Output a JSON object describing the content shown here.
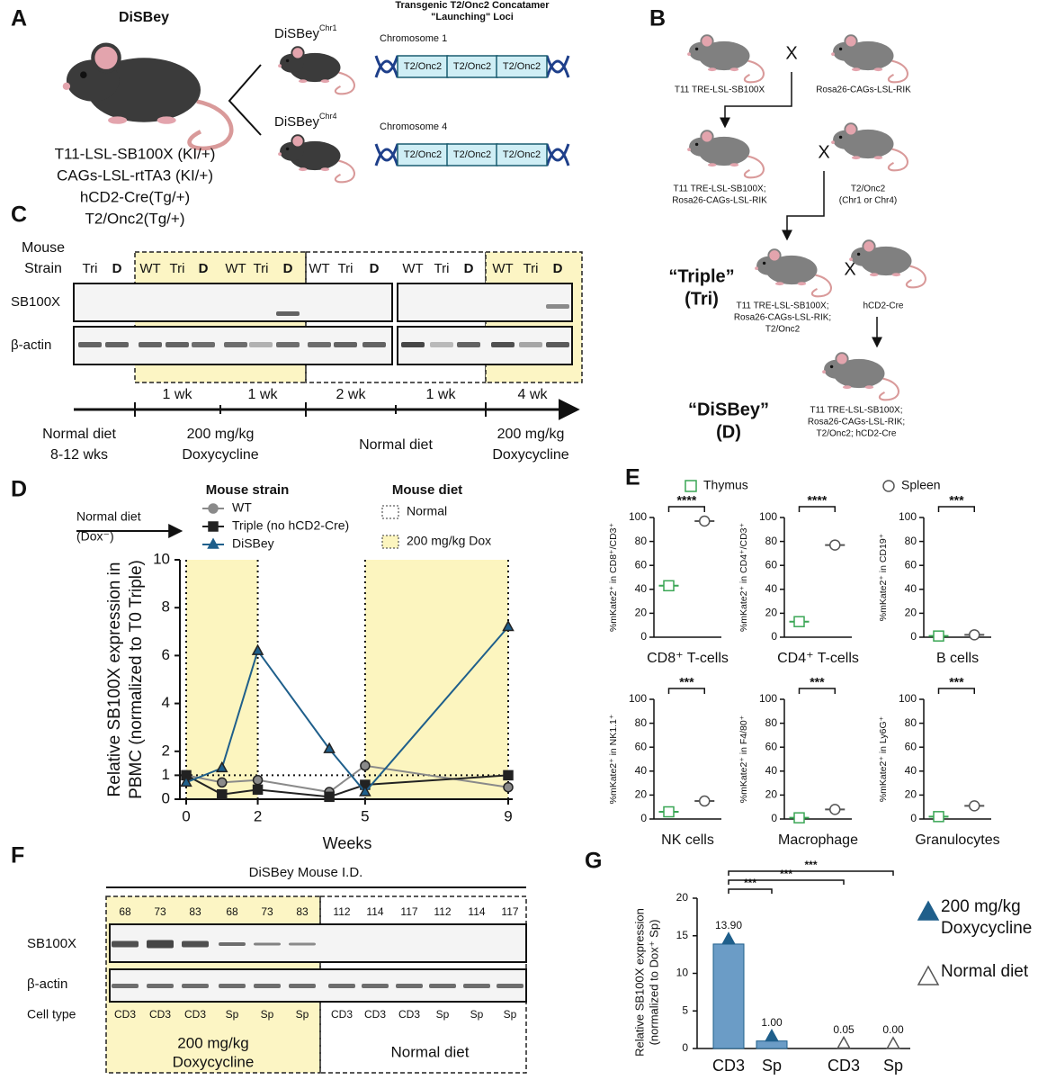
{
  "panel_labels": [
    "A",
    "B",
    "C",
    "D",
    "E",
    "F",
    "G"
  ],
  "panel_a": {
    "title": "DiSBey",
    "genotype": [
      "T11-LSL-SB100X (KI/+)",
      "CAGs-LSL-rtTA3 (KI/+)",
      "hCD2-Cre(Tg/+)",
      "T2/Onc2(Tg/+)"
    ],
    "loci_title": [
      "Transgenic T2/Onc2 Concatamer",
      "\"Launching\" Loci"
    ],
    "strains": [
      {
        "name": "DiSBey",
        "superscript": "Chr1",
        "chromosome": "Chromosome 1"
      },
      {
        "name": "DiSBey",
        "superscript": "Chr4",
        "chromosome": "Chromosome 4"
      }
    ],
    "element": "T2/Onc2"
  },
  "panel_b": {
    "cross": "X",
    "parent_1": [
      "T11 TRE-LSL-SB100X"
    ],
    "parent_2": [
      "Rosa26-CAGs-LSL-RIK"
    ],
    "f1": [
      "T11  TRE-LSL-SB100X;",
      "Rosa26-CAGs-LSL-RIK"
    ],
    "parent_3": [
      "T2/Onc2",
      "(Chr1 or Chr4)"
    ],
    "triple": {
      "name": "“Triple”",
      "abbr": "(Tri)",
      "genotype": [
        "T11 TRE-LSL-SB100X;",
        "Rosa26-CAGs-LSL-RIK;",
        "T2/Onc2"
      ]
    },
    "parent_4": [
      "hCD2-Cre"
    ],
    "disbey": {
      "name": "“DiSBey”",
      "abbr": "(D)",
      "genotype": [
        "T11 TRE-LSL-SB100X;",
        "Rosa26-CAGs-LSL-RIK;",
        "T2/Onc2; hCD2-Cre"
      ]
    }
  },
  "panel_c": {
    "header": [
      "Mouse",
      "Strain"
    ],
    "lanes": [
      "Tri",
      "D",
      "WT",
      "Tri",
      "D",
      "WT",
      "Tri",
      "D",
      "WT",
      "Tri",
      "D",
      "WT",
      "Tri",
      "D",
      "WT",
      "Tri",
      "D"
    ],
    "rows": [
      "SB100X",
      "β-actin"
    ],
    "durations": [
      "1 wk",
      "1 wk",
      "2 wk",
      "1 wk",
      "4 wk"
    ],
    "phases": [
      [
        "Normal diet",
        "8-12 wks"
      ],
      [
        "200 mg/kg",
        "Doxycycline"
      ],
      [
        "Normal diet"
      ],
      [
        "200 mg/kg",
        "Doxycycline"
      ]
    ]
  },
  "panel_e_legend": [
    {
      "name": "Thymus",
      "color": "#3aa655",
      "marker": "square"
    },
    {
      "name": "Spleen",
      "color": "#555555",
      "marker": "circle"
    }
  ],
  "panel_f": {
    "title": "DiSBey Mouse I.D.",
    "ids": [
      "68",
      "73",
      "83",
      "68",
      "73",
      "83",
      "112",
      "114",
      "117",
      "112",
      "114",
      "117"
    ],
    "rows": [
      "SB100X",
      "β-actin"
    ],
    "cell_type_label": "Cell type",
    "cell_types": [
      "CD3",
      "CD3",
      "CD3",
      "Sp",
      "Sp",
      "Sp",
      "CD3",
      "CD3",
      "CD3",
      "Sp",
      "Sp",
      "Sp"
    ],
    "groups": [
      [
        "200 mg/kg",
        "Doxycycline"
      ],
      [
        "Normal diet"
      ]
    ]
  },
  "chart_data": [
    {
      "type": "line",
      "xlabel": "Weeks",
      "ylabel": [
        "Relative SB100X expression in",
        "PBMC (normalized to T0 Triple)"
      ],
      "x": [
        0,
        1,
        2,
        4,
        5,
        9
      ],
      "series": [
        {
          "name": "WT",
          "color": "#8a8a8a",
          "marker": "circle",
          "values": [
            1.0,
            0.7,
            0.8,
            0.3,
            1.4,
            0.5
          ]
        },
        {
          "name": "Triple (no hCD2-Cre)",
          "color": "#222222",
          "marker": "square",
          "values": [
            1.0,
            0.2,
            0.4,
            0.1,
            0.6,
            1.0
          ]
        },
        {
          "name": "DiSBey",
          "color": "#1f5f8b",
          "marker": "triangle",
          "values": [
            0.7,
            1.3,
            6.2,
            2.1,
            0.3,
            7.2
          ]
        }
      ],
      "xlim": [
        0,
        9
      ],
      "xticks": [
        0,
        2,
        5,
        9
      ],
      "ylim": [
        0,
        10
      ],
      "yticks": [
        0,
        1,
        2,
        4,
        6,
        8,
        10
      ],
      "reference_line": 1,
      "shaded_x": [
        [
          0,
          2
        ],
        [
          5,
          9
        ]
      ],
      "shade_color": "#fcf5bf",
      "legend_title": "Mouse strain",
      "diet_legend": {
        "title": "Mouse diet",
        "entries": [
          "Normal",
          "200 mg/kg Dox"
        ]
      },
      "annotation": [
        "Normal diet",
        "(Dox⁻)"
      ]
    },
    {
      "type": "dot",
      "ylabel": "%mKate2⁺ in CD8⁺/CD3⁺",
      "xlabel": "CD8⁺ T-cells",
      "values": [
        43,
        97
      ],
      "significance": "****",
      "ylim": [
        0,
        100
      ],
      "yticks": [
        0,
        20,
        40,
        60,
        80,
        100
      ]
    },
    {
      "type": "dot",
      "ylabel": "%mKate2⁺ in CD4⁺/CD3⁺",
      "xlabel": "CD4⁺ T-cells",
      "values": [
        13,
        77
      ],
      "significance": "****",
      "ylim": [
        0,
        100
      ],
      "yticks": [
        0,
        20,
        40,
        60,
        80,
        100
      ]
    },
    {
      "type": "dot",
      "ylabel": "%mKate2⁺ in CD19⁺",
      "xlabel": "B cells",
      "values": [
        1,
        2
      ],
      "significance": "***",
      "ylim": [
        0,
        100
      ],
      "yticks": [
        0,
        20,
        40,
        60,
        80,
        100
      ]
    },
    {
      "type": "dot",
      "ylabel": "%mKate2⁺ in NK1.1⁺",
      "xlabel": "NK cells",
      "values": [
        6,
        15
      ],
      "significance": "***",
      "ylim": [
        0,
        100
      ],
      "yticks": [
        0,
        20,
        40,
        60,
        80,
        100
      ]
    },
    {
      "type": "dot",
      "ylabel": "%mKate2⁺ in F4/80⁺",
      "xlabel": "Macrophage",
      "values": [
        1,
        8
      ],
      "significance": "***",
      "ylim": [
        0,
        100
      ],
      "yticks": [
        0,
        20,
        40,
        60,
        80,
        100
      ]
    },
    {
      "type": "dot",
      "ylabel": "%mKate2⁺ in Ly6G⁺",
      "xlabel": "Granulocytes",
      "values": [
        2,
        11
      ],
      "significance": "***",
      "ylim": [
        0,
        100
      ],
      "yticks": [
        0,
        20,
        40,
        60,
        80,
        100
      ]
    },
    {
      "type": "bar",
      "ylabel": [
        "Relative SB100X expression",
        "(normalized to Dox⁺ Sp)"
      ],
      "categories": [
        "CD3",
        "Sp",
        "CD3",
        "Sp"
      ],
      "series": [
        {
          "name": "200 mg/kg Doxycycline",
          "color": "#1f5f8b",
          "bar_color": "#6b9cc6",
          "filled": true,
          "values": [
            13.9,
            1.0,
            null,
            null
          ],
          "value_labels": [
            "13.90",
            "1.00",
            null,
            null
          ]
        },
        {
          "name": "Normal diet",
          "color": "#555555",
          "filled": false,
          "values": [
            null,
            null,
            0.05,
            0.0
          ],
          "value_labels": [
            null,
            null,
            "0.05",
            "0.00"
          ]
        }
      ],
      "significance": [
        "***",
        "***",
        "***"
      ],
      "ylim": [
        0,
        20
      ],
      "yticks": [
        0,
        5,
        10,
        15,
        20
      ]
    }
  ]
}
